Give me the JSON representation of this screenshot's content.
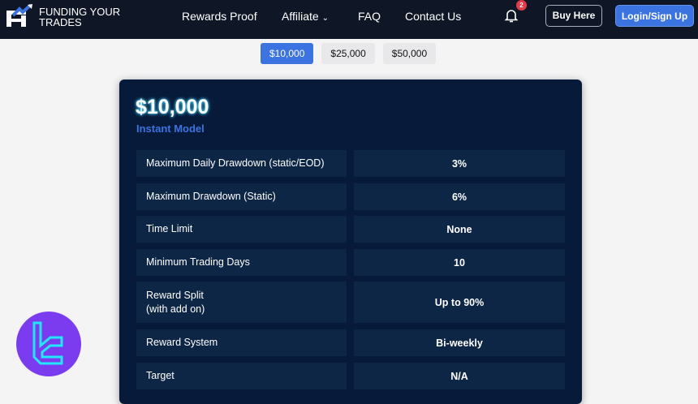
{
  "header": {
    "brand": "FUNDING YOUR TRADES",
    "nav": [
      "Rewards Proof",
      "Affiliate",
      "FAQ",
      "Contact Us"
    ],
    "notification_count": "2",
    "buy_label": "Buy Here",
    "login_label": "Login/Sign Up"
  },
  "tabs": [
    {
      "label": "$10,000",
      "active": true
    },
    {
      "label": "$25,000"
    },
    {
      "label": "$50,000"
    }
  ],
  "card": {
    "amount": "$10,000",
    "model": "Instant Model",
    "rows": [
      {
        "label": "Maximum Daily Drawdown (static/EOD)",
        "value": "3%"
      },
      {
        "label": "Maximum Drawdown (Static)",
        "value": "6%"
      },
      {
        "label": "Time Limit",
        "value": "None"
      },
      {
        "label": "Minimum Trading Days",
        "value": "10"
      },
      {
        "label": "Reward Split\n(with add on)",
        "value": "Up to 90%"
      },
      {
        "label": "Reward System",
        "value": "Bi-weekly"
      },
      {
        "label": "Target",
        "value": "N/A"
      }
    ]
  },
  "colors": {
    "accent": "#3b73e0",
    "nav_bg": "#0f1726",
    "card_bg": "#071a3a",
    "watermark": "#7b3cf0"
  }
}
